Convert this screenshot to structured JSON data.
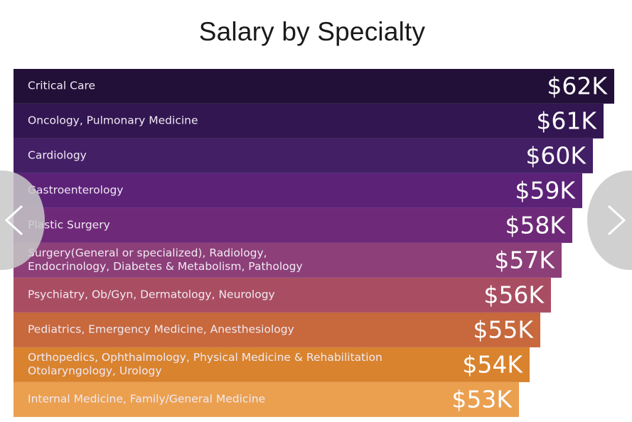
{
  "chart_data": {
    "type": "bar",
    "orientation": "horizontal",
    "title": "Salary by Specialty",
    "xlabel": "",
    "ylabel": "",
    "grid": false,
    "categories": [
      "Critical Care",
      "Oncology, Pulmonary Medicine",
      "Cardiology",
      "Gastroenterology",
      "Plastic Surgery",
      "Surgery(General or specialized), Radiology,\nEndocrinology, Diabetes & Metabolism, Pathology",
      "Psychiatry, Ob/Gyn, Dermatology, Neurology",
      "Pediatrics, Emergency Medicine, Anesthesiology",
      "Orthopedics, Ophthalmology, Physical Medicine & Rehabilitation\nOtolaryngology, Urology",
      "Internal Medicine, Family/General Medicine"
    ],
    "values": [
      62,
      61,
      60,
      59,
      58,
      57,
      56,
      55,
      54,
      53
    ],
    "value_labels": [
      "$62K",
      "$61K",
      "$60K",
      "$59K",
      "$58K",
      "$57K",
      "$56K",
      "$55K",
      "$54K",
      "$53K"
    ],
    "colors": [
      "#221038",
      "#321651",
      "#431f66",
      "#5c2278",
      "#6e2a78",
      "#8c3f79",
      "#a94e62",
      "#c7683d",
      "#d9832f",
      "#eba050"
    ]
  },
  "nav": {
    "prev_icon": "chevron-left-icon",
    "next_icon": "chevron-right-icon"
  }
}
